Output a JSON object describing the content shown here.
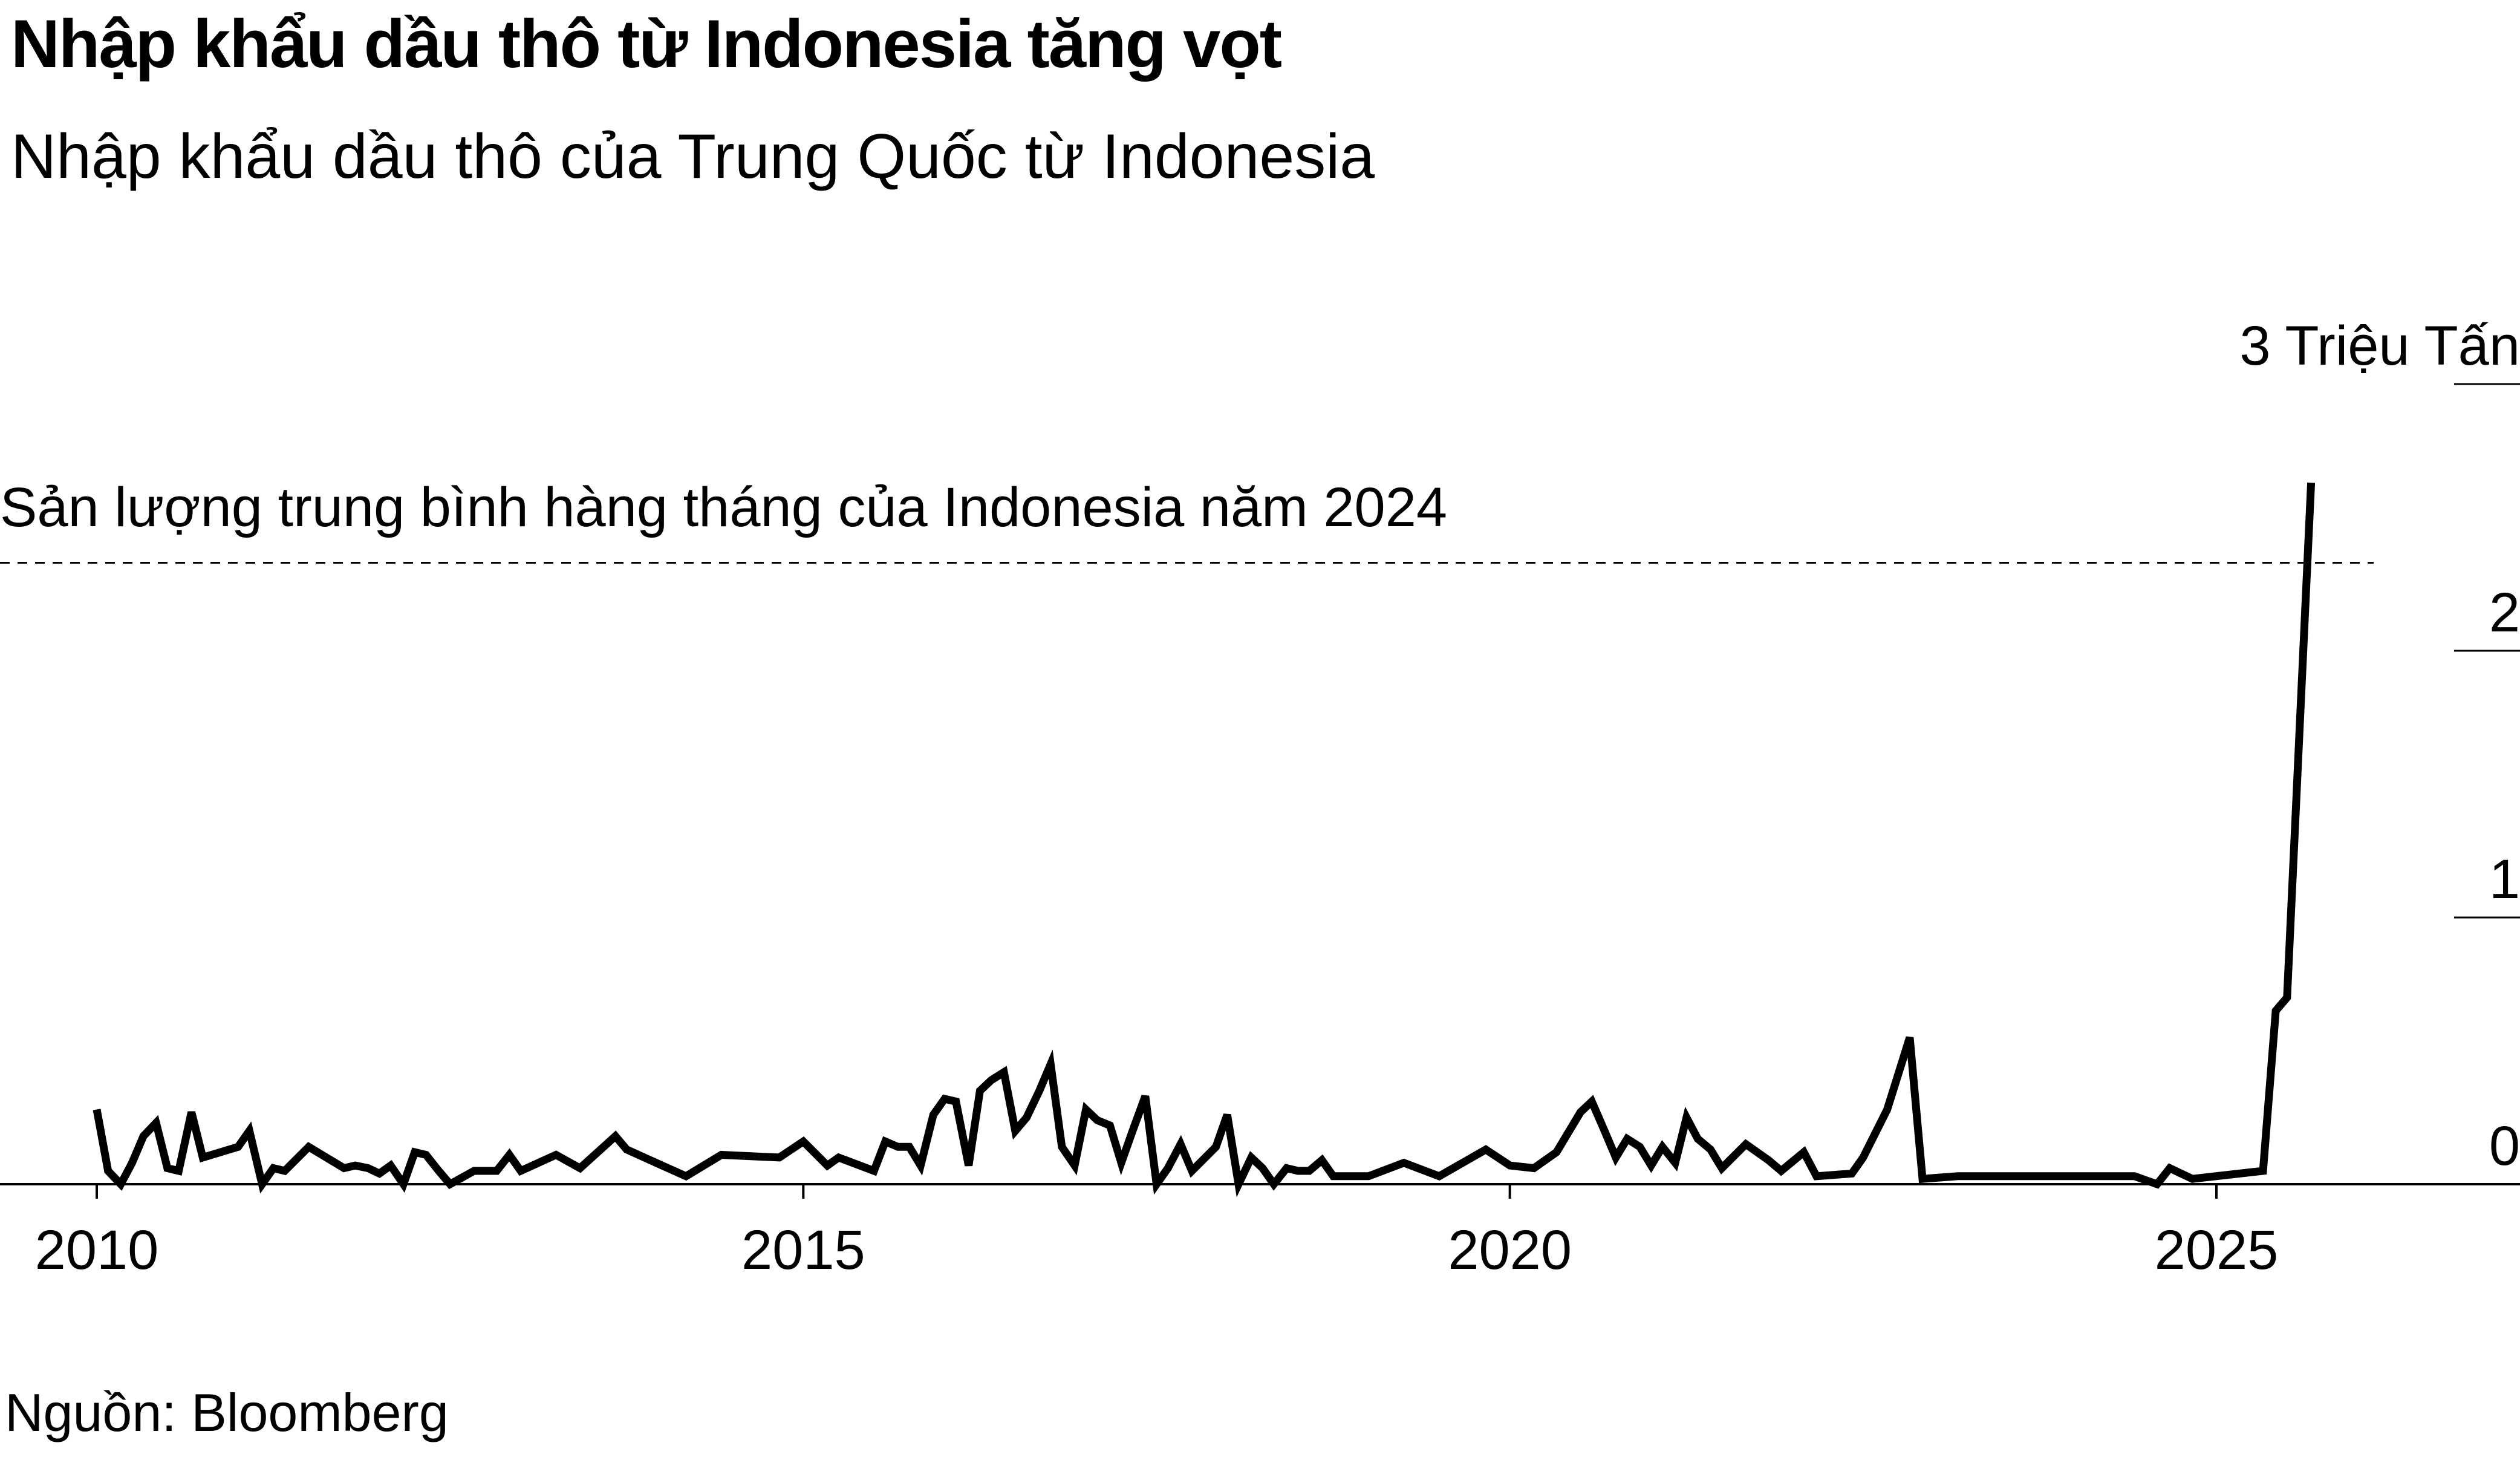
{
  "header": {
    "title": "Nhập khẩu dầu thô từ Indonesia tăng vọt",
    "subtitle": "Nhập khẩu dầu thô của Trung Quốc từ Indonesia"
  },
  "footer": {
    "source": "Nguồn: Bloomberg"
  },
  "chart_data": {
    "type": "line",
    "title": "Nhập khẩu dầu thô từ Indonesia tăng vọt",
    "subtitle": "Nhập khẩu dầu thô của Trung Quốc từ Indonesia",
    "unit_label": "3 Triệu Tấn",
    "xlim": [
      2010,
      2027
    ],
    "ylim": [
      0,
      3
    ],
    "x_ticks": [
      2010,
      2015,
      2020,
      2025
    ],
    "x_tick_labels": [
      "2010",
      "2015",
      "2020",
      "2025"
    ],
    "y_ticks": [
      0,
      1,
      2,
      3
    ],
    "y_tick_labels": [
      "0",
      "1",
      "2",
      "3 Triệu Tấn"
    ],
    "y_axis_side": "right",
    "grid": false,
    "legend": "none",
    "line_color": "#000000",
    "reference_line": {
      "label": "Sản lượng trung bình hàng tháng của Indonesia năm 2024",
      "value": 2.33,
      "style": "dashed"
    },
    "series": [
      {
        "points": [
          [
            2010.0,
            0.28
          ],
          [
            2010.08,
            0.05
          ],
          [
            2010.17,
            0.0
          ],
          [
            2010.25,
            0.08
          ],
          [
            2010.33,
            0.18
          ],
          [
            2010.42,
            0.23
          ],
          [
            2010.5,
            0.06
          ],
          [
            2010.58,
            0.05
          ],
          [
            2010.67,
            0.27
          ],
          [
            2010.75,
            0.1
          ],
          [
            2011.0,
            0.14
          ],
          [
            2011.08,
            0.2
          ],
          [
            2011.17,
            0.0
          ],
          [
            2011.25,
            0.06
          ],
          [
            2011.33,
            0.05
          ],
          [
            2011.5,
            0.14
          ],
          [
            2011.75,
            0.06
          ],
          [
            2011.83,
            0.07
          ],
          [
            2011.92,
            0.06
          ],
          [
            2012.0,
            0.04
          ],
          [
            2012.08,
            0.07
          ],
          [
            2012.17,
            0.0
          ],
          [
            2012.25,
            0.12
          ],
          [
            2012.33,
            0.11
          ],
          [
            2012.42,
            0.05
          ],
          [
            2012.5,
            0.0
          ],
          [
            2012.67,
            0.05
          ],
          [
            2012.75,
            0.05
          ],
          [
            2012.83,
            0.05
          ],
          [
            2012.92,
            0.11
          ],
          [
            2013.0,
            0.05
          ],
          [
            2013.25,
            0.11
          ],
          [
            2013.42,
            0.06
          ],
          [
            2013.67,
            0.18
          ],
          [
            2013.75,
            0.13
          ],
          [
            2014.0,
            0.07
          ],
          [
            2014.17,
            0.03
          ],
          [
            2014.42,
            0.11
          ],
          [
            2014.83,
            0.1
          ],
          [
            2015.0,
            0.16
          ],
          [
            2015.17,
            0.07
          ],
          [
            2015.25,
            0.1
          ],
          [
            2015.5,
            0.05
          ],
          [
            2015.58,
            0.16
          ],
          [
            2015.67,
            0.14
          ],
          [
            2015.75,
            0.14
          ],
          [
            2015.83,
            0.07
          ],
          [
            2015.92,
            0.26
          ],
          [
            2016.0,
            0.32
          ],
          [
            2016.08,
            0.31
          ],
          [
            2016.17,
            0.07
          ],
          [
            2016.25,
            0.35
          ],
          [
            2016.33,
            0.39
          ],
          [
            2016.42,
            0.42
          ],
          [
            2016.5,
            0.2
          ],
          [
            2016.58,
            0.25
          ],
          [
            2016.67,
            0.35
          ],
          [
            2016.75,
            0.45
          ],
          [
            2016.83,
            0.14
          ],
          [
            2016.92,
            0.07
          ],
          [
            2017.0,
            0.28
          ],
          [
            2017.08,
            0.24
          ],
          [
            2017.17,
            0.22
          ],
          [
            2017.25,
            0.08
          ],
          [
            2017.33,
            0.2
          ],
          [
            2017.42,
            0.33
          ],
          [
            2017.5,
            0.0
          ],
          [
            2017.58,
            0.06
          ],
          [
            2017.67,
            0.15
          ],
          [
            2017.75,
            0.05
          ],
          [
            2017.92,
            0.14
          ],
          [
            2018.0,
            0.26
          ],
          [
            2018.08,
            0.0
          ],
          [
            2018.17,
            0.1
          ],
          [
            2018.25,
            0.06
          ],
          [
            2018.33,
            0.0
          ],
          [
            2018.42,
            0.06
          ],
          [
            2018.5,
            0.05
          ],
          [
            2018.58,
            0.05
          ],
          [
            2018.67,
            0.09
          ],
          [
            2018.75,
            0.03
          ],
          [
            2019.0,
            0.03
          ],
          [
            2019.25,
            0.08
          ],
          [
            2019.5,
            0.03
          ],
          [
            2019.83,
            0.13
          ],
          [
            2020.0,
            0.07
          ],
          [
            2020.17,
            0.06
          ],
          [
            2020.33,
            0.12
          ],
          [
            2020.5,
            0.27
          ],
          [
            2020.58,
            0.31
          ],
          [
            2020.67,
            0.2
          ],
          [
            2020.75,
            0.1
          ],
          [
            2020.83,
            0.17
          ],
          [
            2020.92,
            0.14
          ],
          [
            2021.0,
            0.07
          ],
          [
            2021.08,
            0.14
          ],
          [
            2021.17,
            0.08
          ],
          [
            2021.25,
            0.25
          ],
          [
            2021.33,
            0.17
          ],
          [
            2021.42,
            0.13
          ],
          [
            2021.5,
            0.06
          ],
          [
            2021.67,
            0.15
          ],
          [
            2021.83,
            0.09
          ],
          [
            2021.92,
            0.05
          ],
          [
            2022.08,
            0.12
          ],
          [
            2022.17,
            0.03
          ],
          [
            2022.42,
            0.04
          ],
          [
            2022.5,
            0.1
          ],
          [
            2022.67,
            0.28
          ],
          [
            2022.83,
            0.55
          ],
          [
            2022.92,
            0.02
          ],
          [
            2023.17,
            0.03
          ],
          [
            2024.42,
            0.03
          ],
          [
            2024.58,
            0.0
          ],
          [
            2024.67,
            0.06
          ],
          [
            2024.83,
            0.02
          ],
          [
            2025.33,
            0.05
          ],
          [
            2025.42,
            0.65
          ],
          [
            2025.5,
            0.7
          ],
          [
            2025.67,
            2.63
          ]
        ]
      }
    ]
  }
}
